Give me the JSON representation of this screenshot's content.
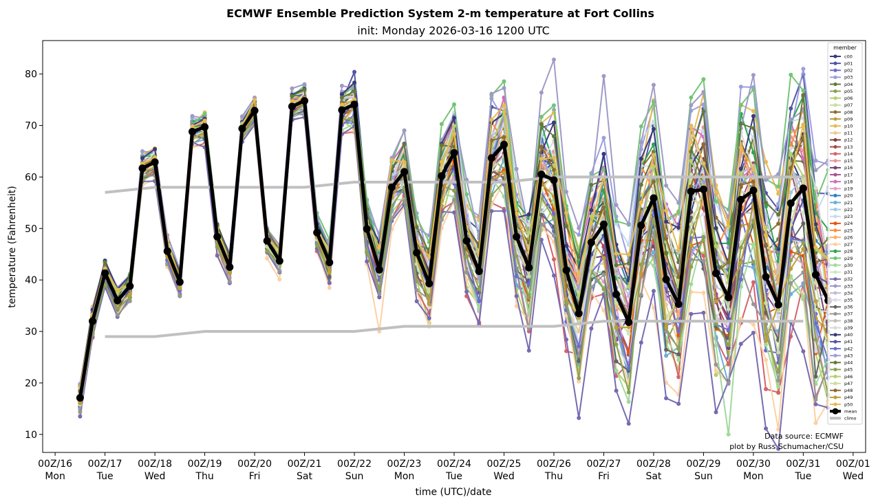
{
  "chart_data": {
    "type": "line",
    "title": "ECMWF Ensemble Prediction System 2-m temperature at Fort Collins",
    "subtitle": "init: Monday 2026-03-16 1200 UTC",
    "xlabel": "time (UTC)/date",
    "ylabel": "temperature (Fahrenheit)",
    "x_units": "days since 00Z/16",
    "xlim": [
      -0.25,
      16.25
    ],
    "ylim": [
      6.5,
      86.5
    ],
    "yticks": [
      10,
      20,
      30,
      40,
      50,
      60,
      70,
      80
    ],
    "xticks": [
      {
        "line1": "00Z/16",
        "line2": "Mon"
      },
      {
        "line1": "00Z/17",
        "line2": "Tue"
      },
      {
        "line1": "00Z/18",
        "line2": "Wed"
      },
      {
        "line1": "00Z/19",
        "line2": "Thu"
      },
      {
        "line1": "00Z/20",
        "line2": "Fri"
      },
      {
        "line1": "00Z/21",
        "line2": "Sat"
      },
      {
        "line1": "00Z/22",
        "line2": "Sun"
      },
      {
        "line1": "00Z/23",
        "line2": "Mon"
      },
      {
        "line1": "00Z/24",
        "line2": "Tue"
      },
      {
        "line1": "00Z/25",
        "line2": "Wed"
      },
      {
        "line1": "00Z/26",
        "line2": "Thu"
      },
      {
        "line1": "00Z/27",
        "line2": "Fri"
      },
      {
        "line1": "00Z/28",
        "line2": "Sat"
      },
      {
        "line1": "00Z/29",
        "line2": "Sun"
      },
      {
        "line1": "00Z/30",
        "line2": "Mon"
      },
      {
        "line1": "00Z/31",
        "line2": "Tue"
      },
      {
        "line1": "00Z/01",
        "line2": "Wed"
      }
    ],
    "grid": false,
    "legend_title": "member",
    "legend_position": "top-right",
    "annotations": [
      "Data source: ECMWF",
      "plot by Russ Schumacher/CSU"
    ],
    "time_start": 0.5,
    "time_step": 0.25,
    "mean": {
      "name": "mean",
      "color": "#000000",
      "values": [
        17.1,
        32.0,
        41.3,
        36.0,
        38.8,
        61.7,
        62.9,
        45.6,
        39.6,
        68.8,
        69.7,
        48.4,
        42.5,
        69.4,
        72.9,
        47.6,
        43.7,
        73.7,
        74.8,
        49.2,
        43.4,
        73.0,
        74.1,
        49.9,
        42.0,
        58.0,
        61.0,
        45.3,
        39.3,
        60.2,
        64.7,
        47.6,
        41.7,
        63.7,
        66.3,
        48.4,
        42.4,
        60.5,
        59.4,
        41.9,
        33.5,
        47.3,
        50.8,
        37.2,
        31.8,
        50.6,
        55.9,
        40.1,
        35.3,
        57.2,
        57.6,
        41.3,
        36.6,
        55.6,
        57.4,
        40.6,
        35.2,
        54.9,
        57.8,
        41.0,
        36.0
      ]
    },
    "climo": {
      "name": "climo",
      "color": "#c0c0c0",
      "days": [
        1,
        2,
        3,
        4,
        5,
        6,
        7,
        8,
        9,
        10,
        11,
        12,
        13,
        14,
        15
      ],
      "max": [
        57,
        58,
        58,
        58,
        58,
        59,
        59,
        59,
        59,
        60,
        60,
        60,
        60,
        60,
        60
      ],
      "min": [
        29,
        29,
        30,
        30,
        30,
        30,
        31,
        31,
        31,
        31,
        32,
        32,
        32,
        32,
        32
      ]
    },
    "members": [
      {
        "name": "c00",
        "color": "#393b79",
        "offset": 0.3
      },
      {
        "name": "p01",
        "color": "#5254a3",
        "offset": 2.5
      },
      {
        "name": "p02",
        "color": "#6b6ecf",
        "offset": -2.0
      },
      {
        "name": "p03",
        "color": "#9c9ede",
        "offset": 3.2
      },
      {
        "name": "p04",
        "color": "#637939",
        "offset": 1.0
      },
      {
        "name": "p05",
        "color": "#8ca252",
        "offset": -1.5
      },
      {
        "name": "p06",
        "color": "#b5cf6b",
        "offset": -2.8
      },
      {
        "name": "p07",
        "color": "#cedb9c",
        "offset": 0.8
      },
      {
        "name": "p08",
        "color": "#8c6d31",
        "offset": 1.8
      },
      {
        "name": "p09",
        "color": "#bd9e39",
        "offset": -0.6
      },
      {
        "name": "p10",
        "color": "#e7ba52",
        "offset": 2.9
      },
      {
        "name": "p11",
        "color": "#e7cb94",
        "offset": -1.1
      },
      {
        "name": "p12",
        "color": "#843c39",
        "offset": 0.6
      },
      {
        "name": "p13",
        "color": "#ad494a",
        "offset": -0.3
      },
      {
        "name": "p14",
        "color": "#d6616b",
        "offset": -3.5
      },
      {
        "name": "p15",
        "color": "#e7969c",
        "offset": 1.4
      },
      {
        "name": "p16",
        "color": "#7b4173",
        "offset": -0.9
      },
      {
        "name": "p17",
        "color": "#a55194",
        "offset": 0.1
      },
      {
        "name": "p18",
        "color": "#ce6dbd",
        "offset": 2.1
      },
      {
        "name": "p19",
        "color": "#de9ed6",
        "offset": -1.8
      },
      {
        "name": "p20",
        "color": "#3182bd",
        "offset": 1.2
      },
      {
        "name": "p21",
        "color": "#6baed6",
        "offset": -2.3
      },
      {
        "name": "p22",
        "color": "#9ecae1",
        "offset": -0.4
      },
      {
        "name": "p23",
        "color": "#c6dbef",
        "offset": 2.7
      },
      {
        "name": "p24",
        "color": "#e6550d",
        "offset": -1.2
      },
      {
        "name": "p25",
        "color": "#fd8d3c",
        "offset": 1.6
      },
      {
        "name": "p26",
        "color": "#fdae6b",
        "offset": 0.4
      },
      {
        "name": "p27",
        "color": "#fdd0a2",
        "offset": -4.0
      },
      {
        "name": "p28",
        "color": "#31a354",
        "offset": 2.2
      },
      {
        "name": "p29",
        "color": "#74c476",
        "offset": 3.6
      },
      {
        "name": "p30",
        "color": "#a1d99b",
        "offset": -2.6
      },
      {
        "name": "p31",
        "color": "#c7e9c0",
        "offset": -0.7
      },
      {
        "name": "p32",
        "color": "#756bb1",
        "offset": -4.5
      },
      {
        "name": "p33",
        "color": "#9e9ac8",
        "offset": 3.9
      },
      {
        "name": "p34",
        "color": "#bcbddc",
        "offset": 0.9
      },
      {
        "name": "p35",
        "color": "#dadaeb",
        "offset": -1.4
      },
      {
        "name": "p36",
        "color": "#636363",
        "offset": -2.1
      },
      {
        "name": "p37",
        "color": "#969696",
        "offset": -3.0
      },
      {
        "name": "p38",
        "color": "#bdbdbd",
        "offset": 0.2
      },
      {
        "name": "p39",
        "color": "#d9d9d9",
        "offset": 1.5
      },
      {
        "name": "p40",
        "color": "#393b79",
        "offset": 2.4
      },
      {
        "name": "p41",
        "color": "#5254a3",
        "offset": -0.2
      },
      {
        "name": "p42",
        "color": "#6b6ecf",
        "offset": -1.7
      },
      {
        "name": "p43",
        "color": "#9c9ede",
        "offset": 0.7
      },
      {
        "name": "p44",
        "color": "#637939",
        "offset": 1.9
      },
      {
        "name": "p45",
        "color": "#8ca252",
        "offset": -2.4
      },
      {
        "name": "p46",
        "color": "#b5cf6b",
        "offset": 1.1
      },
      {
        "name": "p47",
        "color": "#cedb9c",
        "offset": -0.5
      },
      {
        "name": "p48",
        "color": "#8c6d31",
        "offset": 0.5
      },
      {
        "name": "p49",
        "color": "#bd9e39",
        "offset": -1.0
      },
      {
        "name": "p50",
        "color": "#e7ba52",
        "offset": 2.0
      }
    ],
    "legend_entries": [
      "c00",
      "p01",
      "p02",
      "p03",
      "p04",
      "p05",
      "p06",
      "p07",
      "p08",
      "p09",
      "p10",
      "p11",
      "p12",
      "p13",
      "p14",
      "p15",
      "p16",
      "p17",
      "p18",
      "p19",
      "p20",
      "p21",
      "p22",
      "p23",
      "p24",
      "p25",
      "p26",
      "p27",
      "p28",
      "p29",
      "p30",
      "p31",
      "p32",
      "p33",
      "p34",
      "p35",
      "p36",
      "p37",
      "p38",
      "p39",
      "p40",
      "p41",
      "p42",
      "p43",
      "p44",
      "p45",
      "p46",
      "p47",
      "p48",
      "p49",
      "p50",
      "mean",
      "climo"
    ],
    "notable_member_values": [
      {
        "member": "p33",
        "time_days": 10.0,
        "value": 82.8
      },
      {
        "member": "p01",
        "time_days": 6.0,
        "value": 80.4
      },
      {
        "member": "p33",
        "time_days": 11.0,
        "value": 79.6
      },
      {
        "member": "p29",
        "time_days": 15.0,
        "value": 76.8
      },
      {
        "member": "p10",
        "time_days": 12.0,
        "value": 74.9
      },
      {
        "member": "p32",
        "time_days": 10.5,
        "value": 13.2
      },
      {
        "member": "p30",
        "time_days": 13.5,
        "value": 10.0
      },
      {
        "member": "p24",
        "time_days": 16.0,
        "value": 14.0
      },
      {
        "member": "p27",
        "time_days": 6.5,
        "value": 30.0
      }
    ]
  }
}
